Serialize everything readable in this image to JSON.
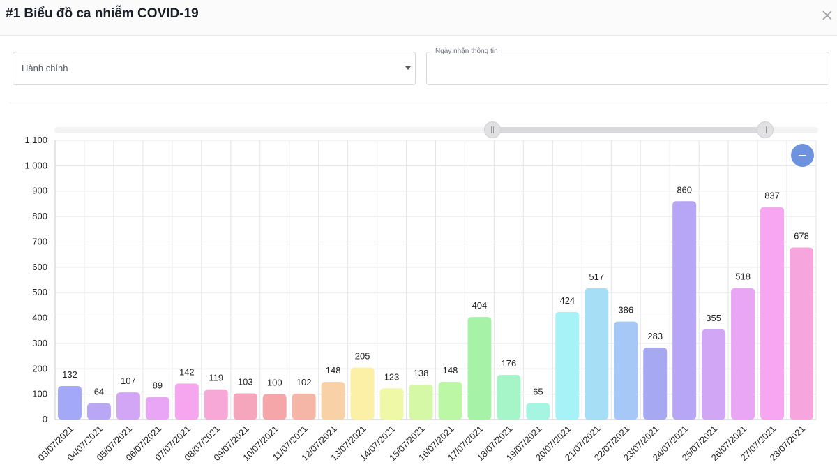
{
  "header": {
    "title": "#1 Biểu đồ ca nhiễm COVID-19",
    "close_icon": "close-icon"
  },
  "filters": {
    "region": {
      "value": "Hành chính",
      "icon": "chevron-down-icon"
    },
    "date": {
      "label": "Ngày nhận thông tin",
      "value": ""
    }
  },
  "controls": {
    "zoom_out_icon": "minus-icon",
    "range_slider": {
      "start_fraction": 0.57,
      "end_fraction": 0.93
    }
  },
  "chart_data": {
    "type": "bar",
    "title": "",
    "xlabel": "",
    "ylabel": "",
    "ylim": [
      0,
      1100
    ],
    "yticks": [
      "0",
      "100",
      "200",
      "300",
      "400",
      "500",
      "600",
      "700",
      "800",
      "900",
      "1,000",
      "1,100"
    ],
    "categories": [
      "03/07/2021",
      "04/07/2021",
      "05/07/2021",
      "06/07/2021",
      "07/07/2021",
      "08/07/2021",
      "09/07/2021",
      "10/07/2021",
      "11/07/2021",
      "12/07/2021",
      "13/07/2021",
      "14/07/2021",
      "15/07/2021",
      "16/07/2021",
      "17/07/2021",
      "18/07/2021",
      "19/07/2021",
      "20/07/2021",
      "21/07/2021",
      "22/07/2021",
      "23/07/2021",
      "24/07/2021",
      "25/07/2021",
      "26/07/2021",
      "27/07/2021",
      "28/07/2021"
    ],
    "values": [
      132,
      64,
      107,
      89,
      142,
      119,
      103,
      100,
      102,
      148,
      205,
      123,
      138,
      148,
      404,
      176,
      65,
      424,
      517,
      386,
      283,
      860,
      355,
      518,
      837,
      678
    ],
    "colors": [
      "#a3a8f7",
      "#b9a7f5",
      "#d3a6f5",
      "#e9a6f6",
      "#f5a6ee",
      "#f7a8d6",
      "#f5a6bc",
      "#f4a6a8",
      "#f6b6a7",
      "#f8d1a7",
      "#fbf0a6",
      "#eef8a6",
      "#d5f8a6",
      "#bcf7a6",
      "#a6f2a6",
      "#a6f5c8",
      "#a6f5e2",
      "#a6f2f6",
      "#a6def6",
      "#a6c8f6",
      "#a6a8f2",
      "#b7a6f5",
      "#d1a6f5",
      "#e9a6f5",
      "#f7a6f2",
      "#f7a6dd"
    ]
  }
}
